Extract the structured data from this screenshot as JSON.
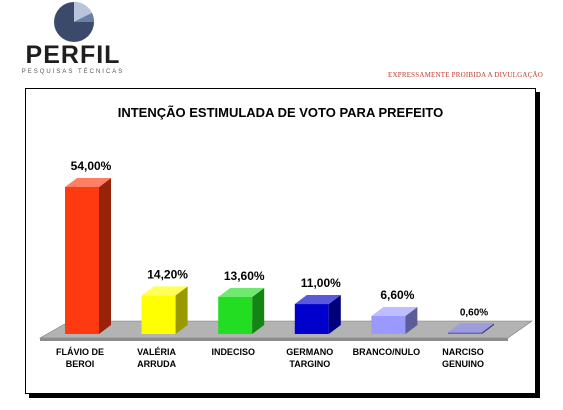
{
  "logo": {
    "wordmark": "PERFIL",
    "tagline": "PESQUISAS TÉCNICAS",
    "colors": {
      "dark": "#3b4a6b",
      "mid": "#6a7fa6",
      "light": "#b7c4dc"
    }
  },
  "restriction_notice": "EXPRESSAMENTE PROIBIDA A DIVULGAÇÃO",
  "chart_data": {
    "type": "bar",
    "title": "INTENÇÃO ESTIMULADA DE VOTO PARA PREFEITO",
    "categories": [
      [
        "FLÁVIO DE",
        "BEROI"
      ],
      [
        "VALÉRIA",
        "ARRUDA"
      ],
      [
        "INDECISO"
      ],
      [
        "GERMANO",
        "TARGINO"
      ],
      [
        "BRANCO/NULO"
      ],
      [
        "NARCISO",
        "GENUINO"
      ]
    ],
    "values": [
      54.0,
      14.2,
      13.6,
      11.0,
      6.6,
      0.6
    ],
    "value_labels": [
      "54,00%",
      "14,20%",
      "13,60%",
      "11,00%",
      "6,60%",
      "0,60%"
    ],
    "colors": [
      "#ff3a10",
      "#ffff00",
      "#22dd22",
      "#0000cc",
      "#9999ff",
      "#6666cc"
    ],
    "ylim": [
      0,
      54
    ],
    "grid": false,
    "legend": "none",
    "style": "3d"
  }
}
